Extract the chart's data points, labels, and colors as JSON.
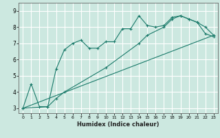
{
  "xlabel": "Humidex (Indice chaleur)",
  "bg_color": "#cce8e0",
  "grid_color": "#ffffff",
  "line_color": "#1a7a6a",
  "xlim": [
    -0.5,
    23.5
  ],
  "ylim": [
    2.7,
    9.5
  ],
  "xticks": [
    0,
    1,
    2,
    3,
    4,
    5,
    6,
    7,
    8,
    9,
    10,
    11,
    12,
    13,
    14,
    15,
    16,
    17,
    18,
    19,
    20,
    21,
    22,
    23
  ],
  "yticks": [
    3,
    4,
    5,
    6,
    7,
    8,
    9
  ],
  "curve1_x": [
    0,
    1,
    2,
    3,
    4,
    5,
    6,
    7,
    8,
    9,
    10,
    11,
    12,
    13,
    14,
    15,
    16,
    17,
    18,
    19,
    20,
    21,
    22,
    23
  ],
  "curve1_y": [
    3.0,
    4.5,
    3.1,
    3.1,
    5.4,
    6.6,
    7.0,
    7.2,
    6.7,
    6.7,
    7.1,
    7.1,
    7.9,
    7.9,
    8.7,
    8.1,
    8.0,
    8.1,
    8.6,
    8.7,
    8.5,
    8.3,
    8.0,
    7.5
  ],
  "curve2_x": [
    0,
    3,
    4,
    5,
    10,
    14,
    15,
    17,
    18,
    19,
    20,
    21,
    22,
    23
  ],
  "curve2_y": [
    3.0,
    3.1,
    3.6,
    4.0,
    5.5,
    7.0,
    7.5,
    8.0,
    8.5,
    8.7,
    8.5,
    8.3,
    7.6,
    7.4
  ],
  "curve3_x": [
    0,
    23
  ],
  "curve3_y": [
    3.0,
    7.5
  ]
}
